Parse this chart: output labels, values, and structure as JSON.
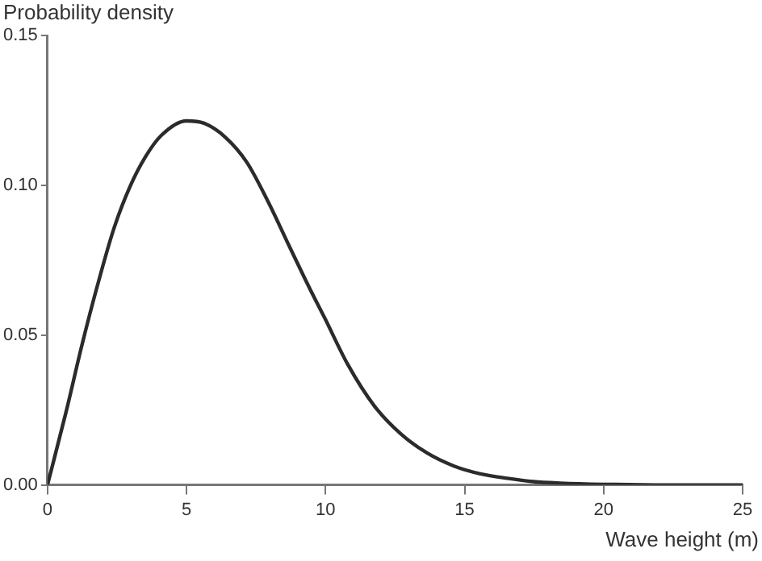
{
  "chart_data": {
    "type": "line",
    "ylabel": "Probability density",
    "xlabel": "Wave height (m)",
    "series": [
      {
        "color": "#2b2b2b",
        "x": [
          0,
          0.67,
          1.24,
          1.81,
          2.39,
          2.96,
          3.53,
          4.1,
          5.0,
          5.63,
          6.39,
          7.16,
          7.92,
          8.68,
          9.45,
          9.96,
          10.8,
          11.76,
          12.71,
          13.66,
          14.62,
          15.57,
          16.53,
          17.48,
          18.43,
          19.96,
          22.25,
          25
        ],
        "values": [
          0,
          0.0244,
          0.0467,
          0.067,
          0.0856,
          0.0994,
          0.1096,
          0.1167,
          0.1215,
          0.1207,
          0.1161,
          0.1078,
          0.0948,
          0.08,
          0.0652,
          0.0559,
          0.0402,
          0.0263,
          0.017,
          0.0106,
          0.0063,
          0.0037,
          0.0022,
          0.0011,
          0.0006,
          0.0002,
          0,
          0
        ]
      }
    ],
    "xlim": [
      0,
      25
    ],
    "xticks": [
      0,
      5,
      10,
      15,
      20,
      25
    ],
    "ylim": [
      0,
      0.15
    ],
    "yticks": [
      {
        "value": 0,
        "label": "0.00"
      },
      {
        "value": 0.05,
        "label": "0.05"
      },
      {
        "value": 0.1,
        "label": "0.10"
      },
      {
        "value": 0.15,
        "label": "0.15"
      }
    ],
    "grid": false,
    "legend": false,
    "marker": "none",
    "line_style": "solid"
  }
}
